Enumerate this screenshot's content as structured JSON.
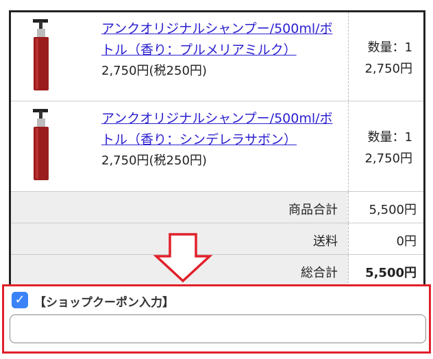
{
  "cart": {
    "items": [
      {
        "name": "アンクオリジナルシャンプー/500ml/ボトル（香り：プルメリアミルク）",
        "price": "2,750円(税250円)",
        "quantity": "数量：1",
        "subtotal": "2,750円",
        "image": "shampoo-bottle-red"
      },
      {
        "name": "アンクオリジナルシャンプー/500ml/ボトル（香り：シンデレラサボン）",
        "price": "2,750円(税250円)",
        "quantity": "数量：1",
        "subtotal": "2,750円",
        "image": "shampoo-bottle-red"
      }
    ],
    "summary": [
      {
        "label": "商品合計",
        "value": "5,500円"
      },
      {
        "label": "送料",
        "value": "0円"
      },
      {
        "label": "総合計",
        "value": "5,500円"
      }
    ]
  },
  "coupon": {
    "label": "【ショップクーポン入力】",
    "checked": true,
    "value": "",
    "placeholder": ""
  },
  "annotation": {
    "arrow": "down-arrow",
    "highlight_color": "#e0202a"
  }
}
